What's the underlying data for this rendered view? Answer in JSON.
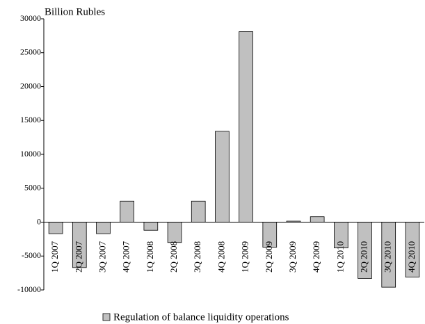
{
  "chart_data": {
    "type": "bar",
    "y_axis_label": "Billion Rubles",
    "categories": [
      "1Q 2007",
      "2Q 2007",
      "3Q 2007",
      "4Q 2007",
      "1Q 2008",
      "2Q 2008",
      "3Q 2008",
      "4Q 2008",
      "1Q 2009",
      "2Q 2009",
      "3Q 2009",
      "4Q 2009",
      "1Q 2010",
      "2Q 2010",
      "3Q 2010",
      "4Q 2010"
    ],
    "series": [
      {
        "name": "Regulation of balance liquidity operations",
        "color": "#c0c0c0",
        "values": [
          -1700,
          -6700,
          -1700,
          3100,
          -1200,
          -3000,
          3100,
          13400,
          28100,
          -3700,
          150,
          800,
          -3800,
          -8300,
          -9600,
          -8100
        ]
      }
    ],
    "ylim": [
      -10000,
      30000
    ],
    "yticks": [
      -10000,
      -5000,
      0,
      5000,
      10000,
      15000,
      20000,
      25000,
      30000
    ],
    "legend": "bottom"
  }
}
